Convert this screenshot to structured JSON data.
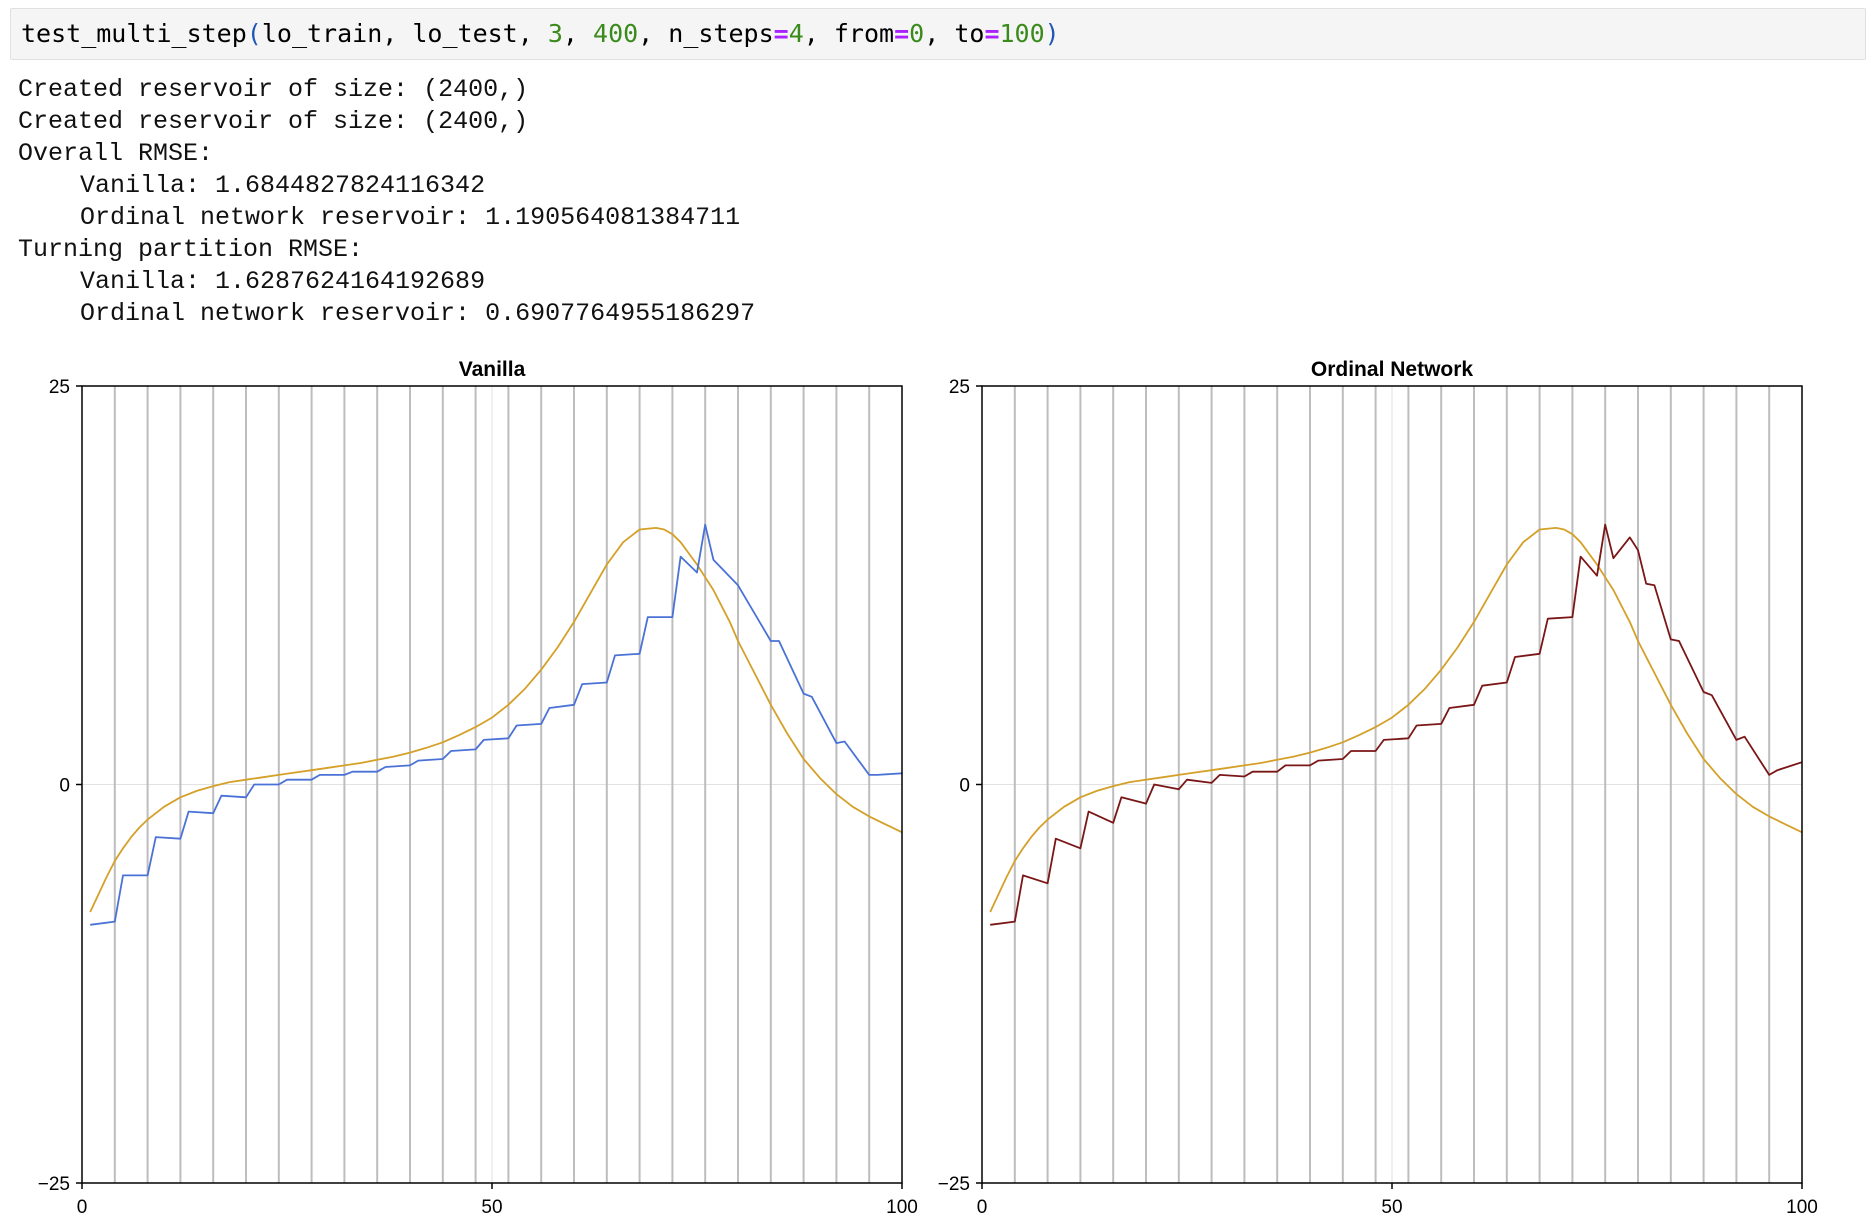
{
  "code": {
    "func": "test_multi_step",
    "open": "(",
    "arg1": "lo_train",
    "sep": ", ",
    "arg2": "lo_test",
    "arg3": "3",
    "arg4": "400",
    "kw1": "n_steps",
    "eq": "=",
    "v1": "4",
    "kw2": "from",
    "v2": "0",
    "kw3": "to",
    "v3": "100",
    "close": ")"
  },
  "output": {
    "line1": "Created reservoir of size: (2400,)",
    "line2": "Created reservoir of size: (2400,)",
    "line3": "Overall RMSE:",
    "line4": "Vanilla: 1.6844827824116342",
    "line5": "Ordinal network reservoir: 1.190564081384711",
    "line6": "Turning partition RMSE:",
    "line7": "Vanilla: 1.6287624164192689",
    "line8": "Ordinal network reservoir: 0.6907764955186297"
  },
  "colors": {
    "truth": "#d4a028",
    "vanilla": "#4a72d6",
    "ordinal": "#7a1616",
    "partition": "#bdbdbd",
    "grid": "#e2e2e2"
  },
  "chart_data": [
    {
      "type": "line",
      "title": "Vanilla",
      "xlabel": "",
      "ylabel": "",
      "xlim": [
        0,
        100
      ],
      "ylim": [
        -25,
        25
      ],
      "xticks": [
        "0",
        "50",
        "100"
      ],
      "yticks": [
        "25",
        "0",
        "−25"
      ],
      "partition_lines_x": [
        4,
        8,
        12,
        16,
        20,
        24,
        28,
        32,
        36,
        40,
        44,
        48,
        52,
        56,
        60,
        64,
        68,
        72,
        76,
        80,
        84,
        88,
        92,
        96
      ],
      "series": [
        {
          "role": "truth",
          "x": [
            1,
            2,
            3,
            4,
            5,
            6,
            7,
            8,
            10,
            12,
            14,
            16,
            18,
            20,
            22,
            24,
            26,
            28,
            30,
            32,
            34,
            36,
            38,
            40,
            42,
            44,
            46,
            48,
            50,
            52,
            54,
            56,
            58,
            60,
            62,
            64,
            66,
            68,
            70,
            71,
            72,
            73,
            74,
            75,
            76,
            77,
            78,
            79,
            80,
            82,
            84,
            86,
            88,
            90,
            92,
            94,
            96,
            98,
            100
          ],
          "y": [
            -8,
            -6.9,
            -5.8,
            -4.8,
            -4.0,
            -3.3,
            -2.7,
            -2.2,
            -1.4,
            -0.8,
            -0.4,
            -0.1,
            0.15,
            0.3,
            0.45,
            0.6,
            0.75,
            0.9,
            1.05,
            1.2,
            1.35,
            1.55,
            1.75,
            2.0,
            2.3,
            2.65,
            3.1,
            3.6,
            4.2,
            5.0,
            6.0,
            7.2,
            8.6,
            10.2,
            12.0,
            13.8,
            15.2,
            16.0,
            16.1,
            16.0,
            15.7,
            15.2,
            14.5,
            13.8,
            13.0,
            12.2,
            11.2,
            10.2,
            9.0,
            7.0,
            5.0,
            3.2,
            1.6,
            0.4,
            -0.6,
            -1.4,
            -2.0,
            -2.5,
            -3.0
          ]
        },
        {
          "role": "prediction",
          "x": [
            1,
            4,
            5,
            8,
            9,
            12,
            13,
            16,
            17,
            20,
            21,
            24,
            25,
            28,
            29,
            32,
            33,
            36,
            37,
            40,
            41,
            44,
            45,
            48,
            49,
            52,
            53,
            56,
            57,
            60,
            61,
            64,
            65,
            68,
            69,
            72,
            73,
            75,
            76,
            77,
            80,
            84,
            85,
            88,
            89,
            92,
            93,
            96,
            97,
            100
          ],
          "y": [
            -8.8,
            -8.6,
            -5.7,
            -5.7,
            -3.3,
            -3.4,
            -1.7,
            -1.8,
            -0.7,
            -0.8,
            0.0,
            0.0,
            0.3,
            0.3,
            0.6,
            0.6,
            0.8,
            0.8,
            1.1,
            1.2,
            1.5,
            1.6,
            2.1,
            2.2,
            2.8,
            2.9,
            3.7,
            3.8,
            4.8,
            5.0,
            6.3,
            6.4,
            8.1,
            8.2,
            10.5,
            10.5,
            14.3,
            13.3,
            16.3,
            14.1,
            12.5,
            9.0,
            9.0,
            5.7,
            5.5,
            2.6,
            2.7,
            0.6,
            0.6,
            0.7
          ]
        }
      ]
    },
    {
      "type": "line",
      "title": "Ordinal Network",
      "xlabel": "",
      "ylabel": "",
      "xlim": [
        0,
        100
      ],
      "ylim": [
        -25,
        25
      ],
      "xticks": [
        "0",
        "50",
        "100"
      ],
      "yticks": [
        "25",
        "0",
        "−25"
      ],
      "partition_lines_x": [
        4,
        8,
        12,
        16,
        20,
        24,
        28,
        32,
        36,
        40,
        44,
        48,
        52,
        56,
        60,
        64,
        68,
        72,
        76,
        80,
        84,
        88,
        92,
        96
      ],
      "series": [
        {
          "role": "truth",
          "x": [
            1,
            2,
            3,
            4,
            5,
            6,
            7,
            8,
            10,
            12,
            14,
            16,
            18,
            20,
            22,
            24,
            26,
            28,
            30,
            32,
            34,
            36,
            38,
            40,
            42,
            44,
            46,
            48,
            50,
            52,
            54,
            56,
            58,
            60,
            62,
            64,
            66,
            68,
            70,
            71,
            72,
            73,
            74,
            75,
            76,
            77,
            78,
            79,
            80,
            82,
            84,
            86,
            88,
            90,
            92,
            94,
            96,
            98,
            100
          ],
          "y": [
            -8,
            -6.9,
            -5.8,
            -4.8,
            -4.0,
            -3.3,
            -2.7,
            -2.2,
            -1.4,
            -0.8,
            -0.4,
            -0.1,
            0.15,
            0.3,
            0.45,
            0.6,
            0.75,
            0.9,
            1.05,
            1.2,
            1.35,
            1.55,
            1.75,
            2.0,
            2.3,
            2.65,
            3.1,
            3.6,
            4.2,
            5.0,
            6.0,
            7.2,
            8.6,
            10.2,
            12.0,
            13.8,
            15.2,
            16.0,
            16.1,
            16.0,
            15.7,
            15.2,
            14.5,
            13.8,
            13.0,
            12.2,
            11.2,
            10.2,
            9.0,
            7.0,
            5.0,
            3.2,
            1.6,
            0.4,
            -0.6,
            -1.4,
            -2.0,
            -2.5,
            -3.0
          ]
        },
        {
          "role": "prediction",
          "x": [
            1,
            4,
            5,
            8,
            9,
            12,
            13,
            16,
            17,
            20,
            21,
            24,
            25,
            28,
            29,
            32,
            33,
            36,
            37,
            40,
            41,
            44,
            45,
            48,
            49,
            52,
            53,
            56,
            57,
            60,
            61,
            64,
            65,
            68,
            69,
            72,
            73,
            75,
            76,
            77,
            79,
            80,
            81,
            82,
            84,
            85,
            88,
            89,
            92,
            93,
            96,
            97,
            100
          ],
          "y": [
            -8.8,
            -8.6,
            -5.7,
            -6.2,
            -3.4,
            -4.0,
            -1.7,
            -2.4,
            -0.8,
            -1.2,
            0.0,
            -0.3,
            0.3,
            0.1,
            0.6,
            0.5,
            0.8,
            0.8,
            1.2,
            1.2,
            1.5,
            1.6,
            2.1,
            2.1,
            2.8,
            2.9,
            3.7,
            3.8,
            4.8,
            5.0,
            6.2,
            6.4,
            8.0,
            8.2,
            10.4,
            10.5,
            14.3,
            13.1,
            16.3,
            14.2,
            15.5,
            14.7,
            12.6,
            12.5,
            9.1,
            9.0,
            5.8,
            5.6,
            2.8,
            3.0,
            0.6,
            0.9,
            1.4
          ]
        }
      ]
    }
  ]
}
